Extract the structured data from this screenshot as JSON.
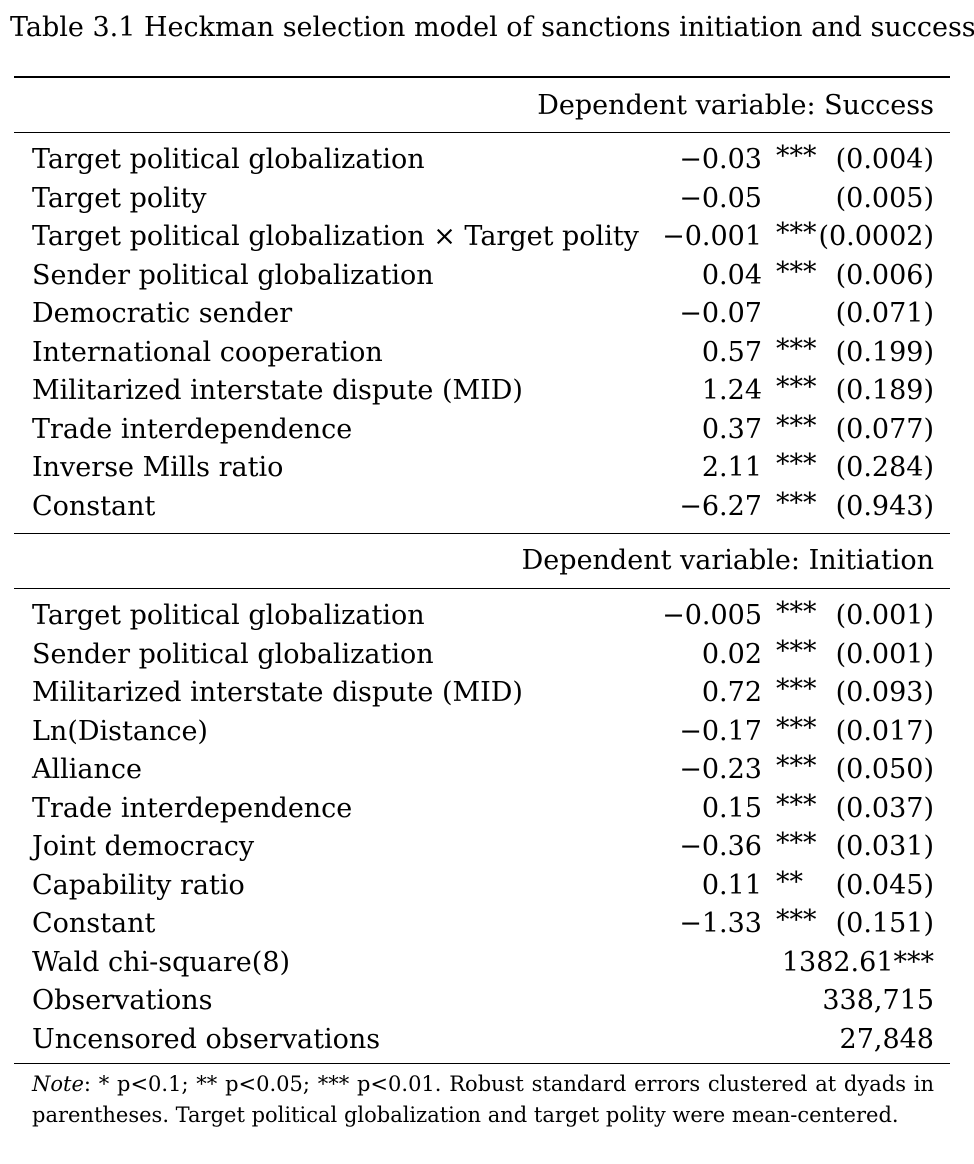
{
  "caption": "Table 3.1 Heckman selection model of sanctions initiation and success",
  "success_section": {
    "header": "Dependent variable: Success",
    "rows": [
      {
        "label": "Target political globalization",
        "coef": "−0.03",
        "stars": "***",
        "se": "(0.004)"
      },
      {
        "label": "Target polity",
        "coef": "−0.05",
        "stars": "",
        "se": "(0.005)"
      },
      {
        "label": "Target political globalization × Target polity",
        "coef": "−0.001",
        "stars": "***",
        "se": "(0.0002)"
      },
      {
        "label": "Sender political globalization",
        "coef": "0.04",
        "stars": "***",
        "se": "(0.006)"
      },
      {
        "label": "Democratic sender",
        "coef": "−0.07",
        "stars": "",
        "se": "(0.071)"
      },
      {
        "label": "International cooperation",
        "coef": "0.57",
        "stars": "***",
        "se": "(0.199)"
      },
      {
        "label": "Militarized interstate dispute (MID)",
        "coef": "1.24",
        "stars": "***",
        "se": "(0.189)"
      },
      {
        "label": "Trade interdependence",
        "coef": "0.37",
        "stars": "***",
        "se": "(0.077)"
      },
      {
        "label": "Inverse Mills ratio",
        "coef": "2.11",
        "stars": "***",
        "se": "(0.284)"
      },
      {
        "label": "Constant",
        "coef": "−6.27",
        "stars": "***",
        "se": "(0.943)"
      }
    ]
  },
  "initiation_section": {
    "header": "Dependent variable: Initiation",
    "rows": [
      {
        "label": "Target political globalization",
        "coef": "−0.005",
        "stars": "***",
        "se": "(0.001)"
      },
      {
        "label": "Sender political globalization",
        "coef": "0.02",
        "stars": "***",
        "se": "(0.001)"
      },
      {
        "label": "Militarized interstate dispute (MID)",
        "coef": "0.72",
        "stars": "***",
        "se": "(0.093)"
      },
      {
        "label": "Ln(Distance)",
        "coef": "−0.17",
        "stars": "***",
        "se": "(0.017)"
      },
      {
        "label": "Alliance",
        "coef": "−0.23",
        "stars": "***",
        "se": "(0.050)"
      },
      {
        "label": "Trade interdependence",
        "coef": "0.15",
        "stars": "***",
        "se": "(0.037)"
      },
      {
        "label": "Joint democracy",
        "coef": "−0.36",
        "stars": "***",
        "se": "(0.031)"
      },
      {
        "label": "Capability ratio",
        "coef": "0.11",
        "stars": "**",
        "se": "(0.045)"
      },
      {
        "label": "Constant",
        "coef": "−1.33",
        "stars": "***",
        "se": "(0.151)"
      }
    ],
    "stats": [
      {
        "label": "Wald chi-square(8)",
        "value": "1382.61***"
      },
      {
        "label": "Observations",
        "value": "338,715"
      },
      {
        "label": "Uncensored observations",
        "value": "27,848"
      }
    ]
  },
  "note": {
    "label": "Note",
    "text": ": * p<0.1; ** p<0.05; *** p<0.01. Robust standard errors clustered at dyads in parentheses. Target political globalization and target polity were mean-centered."
  }
}
